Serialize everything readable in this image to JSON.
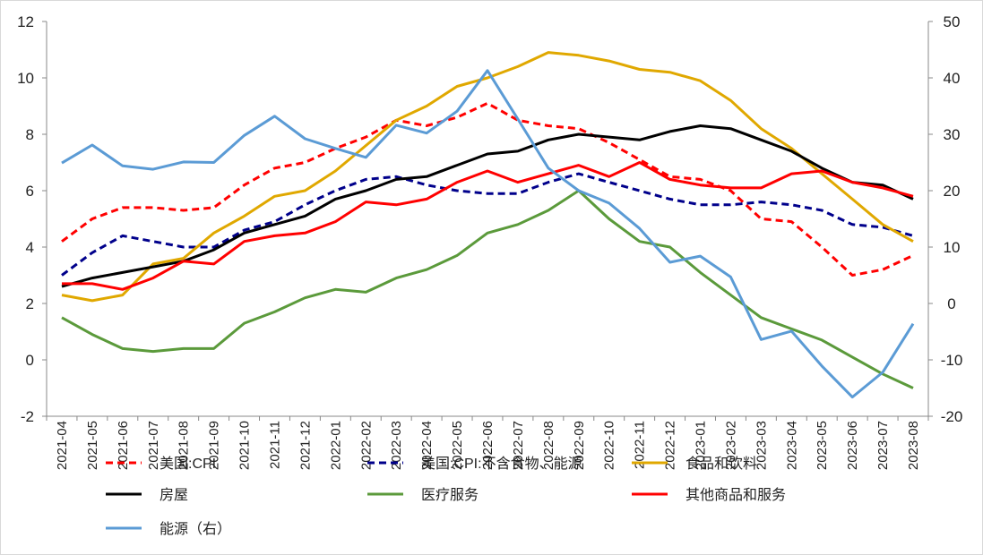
{
  "chart_data": {
    "type": "line",
    "categories": [
      "2021-04",
      "2021-05",
      "2021-06",
      "2021-07",
      "2021-08",
      "2021-09",
      "2021-10",
      "2021-11",
      "2021-12",
      "2022-01",
      "2022-02",
      "2022-03",
      "2022-04",
      "2022-05",
      "2022-06",
      "2022-07",
      "2022-08",
      "2022-09",
      "2022-10",
      "2022-11",
      "2022-12",
      "2023-01",
      "2023-02",
      "2023-03",
      "2023-04",
      "2023-05",
      "2023-06",
      "2023-07",
      "2023-08"
    ],
    "y_left": {
      "min": -2,
      "max": 12,
      "ticks": [
        -2,
        0,
        2,
        4,
        6,
        8,
        10,
        12
      ]
    },
    "y_right": {
      "min": -20,
      "max": 50,
      "ticks": [
        -20,
        -10,
        0,
        10,
        20,
        30,
        40,
        50
      ]
    },
    "grid": false,
    "legend_position": "bottom",
    "series": [
      {
        "name": "美国:CPI",
        "axis": "left",
        "color": "#ff0000",
        "dash": true,
        "values": [
          4.2,
          5.0,
          5.4,
          5.4,
          5.3,
          5.4,
          6.2,
          6.8,
          7.0,
          7.5,
          7.9,
          8.5,
          8.3,
          8.6,
          9.1,
          8.5,
          8.3,
          8.2,
          7.7,
          7.1,
          6.5,
          6.4,
          6.0,
          5.0,
          4.9,
          4.0,
          3.0,
          3.2,
          3.7
        ]
      },
      {
        "name": "美国:CPI:不含食物、能源",
        "axis": "left",
        "color": "#00008b",
        "dash": true,
        "values": [
          3.0,
          3.8,
          4.4,
          4.2,
          4.0,
          4.0,
          4.6,
          4.9,
          5.5,
          6.0,
          6.4,
          6.5,
          6.2,
          6.0,
          5.9,
          5.9,
          6.3,
          6.6,
          6.3,
          6.0,
          5.7,
          5.5,
          5.5,
          5.6,
          5.5,
          5.3,
          4.8,
          4.7,
          4.4
        ]
      },
      {
        "name": "食品和饮料",
        "axis": "left",
        "color": "#e0a800",
        "dash": false,
        "values": [
          2.3,
          2.1,
          2.3,
          3.4,
          3.6,
          4.5,
          5.1,
          5.8,
          6.0,
          6.7,
          7.6,
          8.5,
          9.0,
          9.7,
          10.0,
          10.4,
          10.9,
          10.8,
          10.6,
          10.3,
          10.2,
          9.9,
          9.2,
          8.2,
          7.5,
          6.6,
          5.7,
          4.8,
          4.2
        ]
      },
      {
        "name": "房屋",
        "axis": "left",
        "color": "#000000",
        "dash": false,
        "values": [
          2.6,
          2.9,
          3.1,
          3.3,
          3.5,
          3.9,
          4.5,
          4.8,
          5.1,
          5.7,
          6.0,
          6.4,
          6.5,
          6.9,
          7.3,
          7.4,
          7.8,
          8.0,
          7.9,
          7.8,
          8.1,
          8.3,
          8.2,
          7.8,
          7.4,
          6.8,
          6.3,
          6.2,
          5.7
        ]
      },
      {
        "name": "医疗服务",
        "axis": "left",
        "color": "#5b9a3b",
        "dash": false,
        "values": [
          1.5,
          0.9,
          0.4,
          0.3,
          0.4,
          0.4,
          1.3,
          1.7,
          2.2,
          2.5,
          2.4,
          2.9,
          3.2,
          3.7,
          4.5,
          4.8,
          5.3,
          6.0,
          5.0,
          4.2,
          4.0,
          3.1,
          2.3,
          1.5,
          1.1,
          0.7,
          0.1,
          -0.5,
          -1.0
        ]
      },
      {
        "name": "其他商品和服务",
        "axis": "left",
        "color": "#ff0000",
        "dash": false,
        "values": [
          2.7,
          2.7,
          2.5,
          2.9,
          3.5,
          3.4,
          4.2,
          4.4,
          4.5,
          4.9,
          5.6,
          5.5,
          5.7,
          6.3,
          6.7,
          6.3,
          6.6,
          6.9,
          6.5,
          7.0,
          6.4,
          6.2,
          6.1,
          6.1,
          6.6,
          6.7,
          6.3,
          6.1,
          5.8
        ]
      },
      {
        "name": "能源（右）",
        "axis": "right",
        "color": "#5b9bd5",
        "dash": false,
        "values": [
          24.9,
          28.1,
          24.4,
          23.8,
          25.1,
          25.0,
          29.8,
          33.2,
          29.2,
          27.5,
          25.9,
          31.6,
          30.2,
          34.1,
          41.3,
          32.7,
          24.0,
          20.0,
          17.8,
          13.3,
          7.3,
          8.4,
          4.7,
          -6.4,
          -4.9,
          -11.1,
          -16.6,
          -12.2,
          -3.6
        ]
      }
    ]
  }
}
